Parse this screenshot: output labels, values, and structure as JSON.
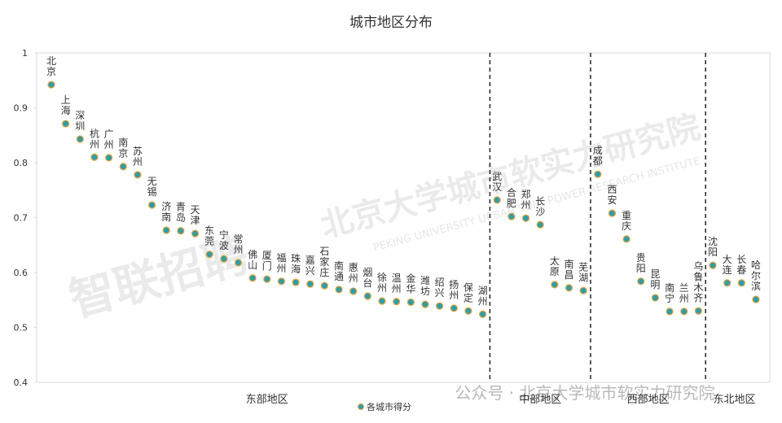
{
  "chart_data": {
    "type": "dot",
    "title": "城市地区分布",
    "ylim": [
      0.4,
      1
    ],
    "yticks": [
      0.4,
      0.5,
      0.6,
      0.7,
      0.8,
      0.9,
      1
    ],
    "series": [
      {
        "name": "各城市得分",
        "color": "#2e9ea8",
        "values": [
          0.942,
          0.871,
          0.843,
          0.81,
          0.809,
          0.793,
          0.778,
          0.723,
          0.677,
          0.676,
          0.671,
          0.633,
          0.625,
          0.618,
          0.59,
          0.588,
          0.584,
          0.582,
          0.579,
          0.576,
          0.569,
          0.566,
          0.557,
          0.548,
          0.547,
          0.546,
          0.542,
          0.539,
          0.535,
          0.53,
          0.524,
          0.732,
          0.702,
          0.699,
          0.687,
          0.578,
          0.572,
          0.567,
          0.779,
          0.708,
          0.661,
          0.584,
          0.554,
          0.529,
          0.529,
          0.53,
          0.613,
          0.581,
          0.581,
          0.551
        ]
      }
    ],
    "groups": [
      {
        "name": "东部地区",
        "categories": [
          "北京",
          "上海",
          "深圳",
          "杭州",
          "广州",
          "南京",
          "苏州",
          "无锡",
          "济南",
          "青岛",
          "天津",
          "东莞",
          "宁波",
          "常州",
          "佛山",
          "厦门",
          "福州",
          "珠海",
          "嘉兴",
          "石家庄",
          "南通",
          "惠州",
          "烟台",
          "徐州",
          "温州",
          "金华",
          "潍坊",
          "绍兴",
          "扬州",
          "保定",
          "湖州"
        ]
      },
      {
        "name": "中部地区",
        "categories": [
          "武汉",
          "合肥",
          "郑州",
          "长沙",
          "太原",
          "南昌",
          "芜湖"
        ]
      },
      {
        "name": "西部地区",
        "categories": [
          "成都",
          "西安",
          "重庆",
          "贵阳",
          "昆明",
          "南宁",
          "兰州",
          "乌鲁木齐"
        ]
      },
      {
        "name": "东北地区",
        "categories": [
          "沈阳",
          "大连",
          "长春",
          "哈尔滨"
        ]
      }
    ],
    "watermarks": [
      "智联招聘",
      "北京大学城市软实力研究院",
      "PEKING UNIVERSITY URBAN SOFT POWER RESEARCH INSTITUTE",
      "公众号 · 北京大学城市软实力研究院"
    ]
  }
}
